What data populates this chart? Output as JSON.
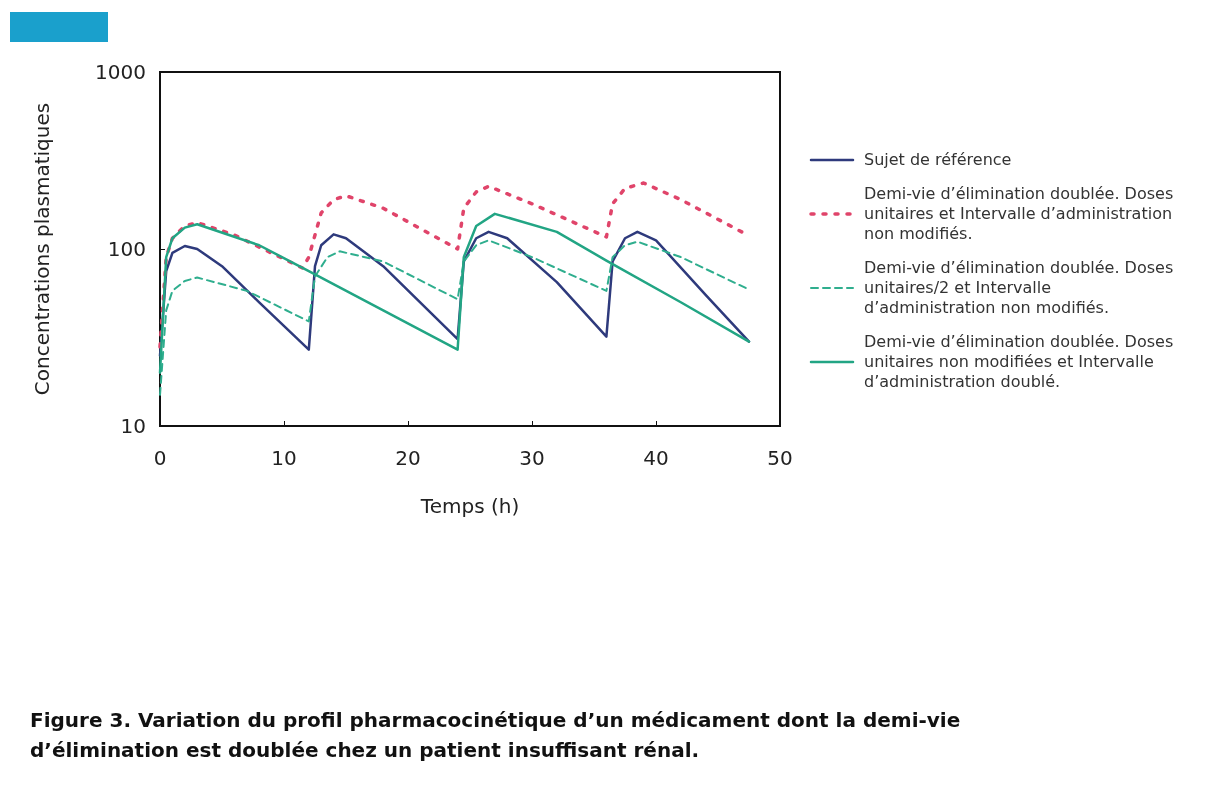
{
  "chart_data": {
    "type": "line",
    "xlabel": "Temps (h)",
    "ylabel": "Concentrations plasmatiques",
    "log": "y",
    "xlim": [
      0,
      50
    ],
    "xticks": [
      0,
      10,
      20,
      30,
      40,
      50
    ],
    "ylim": [
      10,
      1000
    ],
    "yticks": [
      10,
      100,
      1000
    ],
    "grid": false,
    "legend": "right",
    "marker": "none",
    "annotations": [
      "Figure 3. Variation du profil pharmacocinétique d’un médicament dont la demi-vie d’élimination est doublée chez un patient insuffisant rénal."
    ],
    "series": [
      {
        "name": "Sujet de référence",
        "color": "#2e3a7c",
        "line_style": "solid",
        "x": [
          0,
          0.5,
          1,
          2,
          3,
          5,
          8,
          12,
          12.5,
          13,
          14,
          15,
          18,
          24,
          24.5,
          25.5,
          26.5,
          28,
          32,
          36,
          36.5,
          37.5,
          38.5,
          40,
          44,
          47.5
        ],
        "values": [
          25,
          75,
          95,
          104,
          100,
          80,
          50,
          27,
          80,
          105,
          121,
          115,
          80,
          31,
          85,
          115,
          125,
          115,
          65,
          32,
          85,
          115,
          125,
          112,
          55,
          30
        ]
      },
      {
        "name": "Demi-vie d’élimination doublée. Doses unitaires et Intervalle d’administration non modifiés.",
        "color": "#e0446a",
        "line_style": "dotted",
        "x": [
          0,
          0.5,
          1,
          2,
          3,
          6,
          11.5,
          12,
          13,
          14,
          15,
          18,
          24,
          24.5,
          25.5,
          26.5,
          30,
          36,
          36.5,
          37.5,
          39,
          42,
          47
        ],
        "values": [
          28,
          90,
          115,
          135,
          141,
          120,
          78,
          90,
          160,
          190,
          200,
          170,
          100,
          170,
          210,
          226,
          180,
          117,
          180,
          220,
          236,
          190,
          124
        ]
      },
      {
        "name": "Demi-vie d’élimination doublée. Doses unitaires/2 et Intervalle d’administration non modifiés.",
        "color": "#2fae8e",
        "line_style": "dashed",
        "x": [
          0,
          0.5,
          1,
          2,
          3,
          7,
          12,
          12.5,
          13.5,
          14.5,
          18,
          24,
          24.5,
          25.5,
          26.5,
          30,
          36,
          36.5,
          37.5,
          38.5,
          42,
          47.5
        ],
        "values": [
          15,
          45,
          58,
          66,
          69,
          58,
          39,
          70,
          90,
          97,
          85,
          52,
          85,
          105,
          112,
          90,
          58,
          90,
          105,
          110,
          90,
          59
        ]
      },
      {
        "name": "Demi-vie d’élimination doublée. Doses unitaires non modifiées et Intervalle d’administration doublé.",
        "color": "#22a584",
        "line_style": "solid",
        "x": [
          0,
          0.5,
          1,
          2,
          3,
          8,
          12,
          18,
          24,
          24.5,
          25.5,
          27,
          32,
          36,
          42,
          47.5
        ],
        "values": [
          20,
          90,
          115,
          132,
          138,
          105,
          75,
          45,
          27,
          90,
          135,
          158,
          125,
          86,
          50,
          30
        ]
      }
    ]
  }
}
